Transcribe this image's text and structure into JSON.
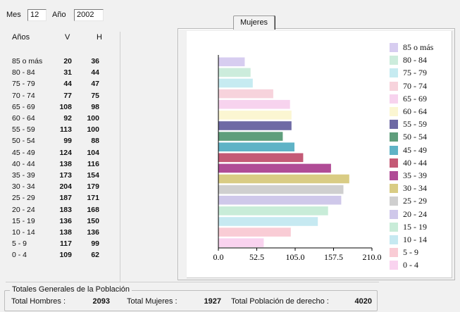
{
  "filters": {
    "month_label": "Mes",
    "month_value": "12",
    "year_label": "Año",
    "year_value": "2002"
  },
  "table": {
    "headers": {
      "age": "Años",
      "men": "V",
      "women": "H"
    },
    "rows": [
      {
        "age": "85 o más",
        "men": "20",
        "women": "36"
      },
      {
        "age": "80 - 84",
        "men": "31",
        "women": "44"
      },
      {
        "age": "75 - 79",
        "men": "44",
        "women": "47"
      },
      {
        "age": "70 - 74",
        "men": "77",
        "women": "75"
      },
      {
        "age": "65 - 69",
        "men": "108",
        "women": "98"
      },
      {
        "age": "60 - 64",
        "men": "92",
        "women": "100"
      },
      {
        "age": "55 - 59",
        "men": "113",
        "women": "100"
      },
      {
        "age": "50 - 54",
        "men": "99",
        "women": "88"
      },
      {
        "age": "45 - 49",
        "men": "124",
        "women": "104"
      },
      {
        "age": "40 - 44",
        "men": "138",
        "women": "116"
      },
      {
        "age": "35 - 39",
        "men": "173",
        "women": "154"
      },
      {
        "age": "30 - 34",
        "men": "204",
        "women": "179"
      },
      {
        "age": "25 - 29",
        "men": "187",
        "women": "171"
      },
      {
        "age": "20 - 24",
        "men": "183",
        "women": "168"
      },
      {
        "age": "15 - 19",
        "men": "136",
        "women": "150"
      },
      {
        "age": "10 - 14",
        "men": "138",
        "women": "136"
      },
      {
        "age": "5 - 9",
        "men": "117",
        "women": "99"
      },
      {
        "age": "0 - 4",
        "men": "109",
        "women": "62"
      }
    ]
  },
  "tab": {
    "label": "Mujeres"
  },
  "chart_data": {
    "type": "bar",
    "orientation": "horizontal",
    "categories": [
      "85 o más",
      "80 - 84",
      "75 - 79",
      "70 - 74",
      "65 - 69",
      "60 - 64",
      "55 - 59",
      "50 - 54",
      "45 - 49",
      "40 - 44",
      "35 - 39",
      "30 - 34",
      "25 - 29",
      "20 - 24",
      "15 - 19",
      "10 - 14",
      "5 - 9",
      "0 - 4"
    ],
    "values": [
      36,
      44,
      47,
      75,
      98,
      100,
      100,
      88,
      104,
      116,
      154,
      179,
      171,
      168,
      150,
      136,
      99,
      62
    ],
    "colors": [
      "#d7cdf0",
      "#ccecdc",
      "#c6ebf1",
      "#f7d3dc",
      "#f7d3ee",
      "#fbf6d2",
      "#6e6aa5",
      "#5f9e7c",
      "#5fb3c6",
      "#c45a76",
      "#b04c96",
      "#d9cc84",
      "#cfcfcf",
      "#cfc8ea",
      "#c8ecd8",
      "#c6e9f1",
      "#f9ccd5",
      "#f9d3ef"
    ],
    "xlim": [
      0,
      210
    ],
    "xticks": [
      "0.0",
      "52.5",
      "105.0",
      "157.5",
      "210.0"
    ],
    "grid": false,
    "legend_position": "right",
    "legend_order": [
      "85 o más",
      "80 - 84",
      "75 - 79",
      "70 - 74",
      "65 - 69",
      "60 - 64",
      "55 - 59",
      "50 - 54",
      "45 - 49",
      "40 - 44",
      "35 - 39",
      "30 - 34",
      "25 - 29",
      "20 - 24",
      "15 - 19",
      "10 - 14",
      "5 - 9",
      "0 - 4"
    ]
  },
  "totals": {
    "group_title": "Totales Generales de la Población",
    "men_label": "Total Hombres :",
    "men_value": "2093",
    "women_label": "Total Mujeres :",
    "women_value": "1927",
    "population_label": "Total Población de derecho :",
    "population_value": "4020"
  }
}
